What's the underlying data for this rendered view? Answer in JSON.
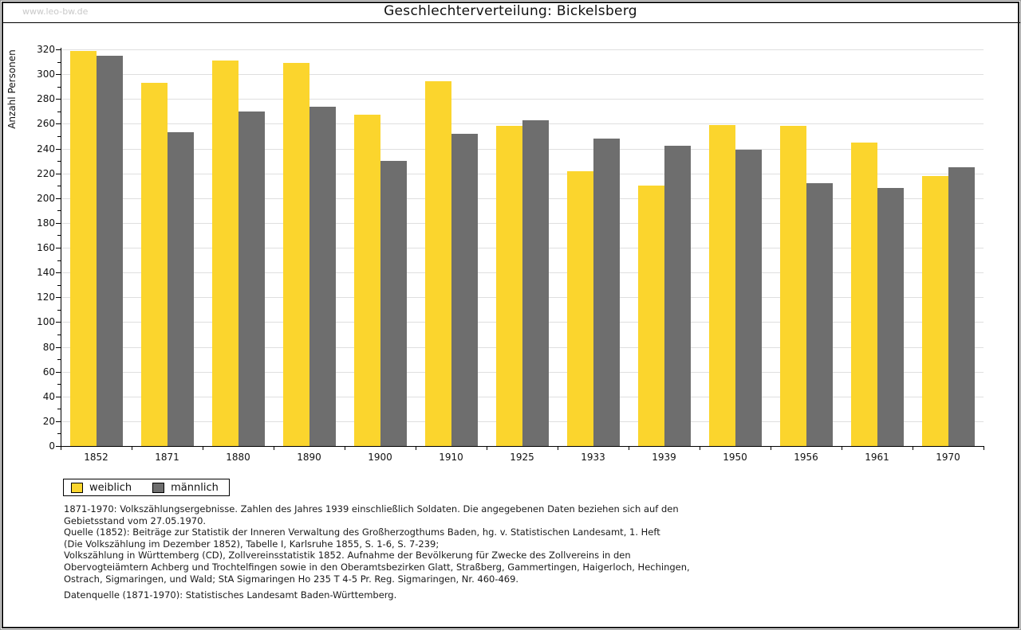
{
  "watermark": "www.leo-bw.de",
  "title": "Geschlechterverteilung: Bickelsberg",
  "chart_data": {
    "type": "bar",
    "title": "Geschlechterverteilung: Bickelsberg",
    "xlabel": "",
    "ylabel": "Anzahl Personen",
    "ylim": [
      0,
      320
    ],
    "yticks": [
      0,
      20,
      40,
      60,
      80,
      100,
      120,
      140,
      160,
      180,
      200,
      220,
      240,
      260,
      280,
      300,
      320
    ],
    "minor_tick_step": 10,
    "grid": "horizontal major gridlines, light gray",
    "legend_position": "bottom-left below plot",
    "categories": [
      "1852",
      "1871",
      "1880",
      "1890",
      "1900",
      "1910",
      "1925",
      "1933",
      "1939",
      "1950",
      "1956",
      "1961",
      "1970"
    ],
    "series": [
      {
        "name": "weiblich",
        "color": "#fbd52d",
        "values": [
          319,
          293,
          311,
          309,
          267,
          294,
          258,
          222,
          210,
          259,
          258,
          245,
          218
        ]
      },
      {
        "name": "männlich",
        "color": "#6e6e6e",
        "values": [
          315,
          253,
          270,
          274,
          230,
          252,
          263,
          248,
          242,
          239,
          212,
          208,
          225
        ]
      }
    ]
  },
  "legend": {
    "items": [
      {
        "label": "weiblich",
        "color": "#fbd52d"
      },
      {
        "label": "männlich",
        "color": "#6e6e6e"
      }
    ]
  },
  "footnotes": {
    "lines": [
      "1871-1970: Volkszählungsergebnisse. Zahlen des Jahres 1939 einschließlich Soldaten. Die angegebenen Daten beziehen sich auf den",
      "Gebietsstand vom 27.05.1970.",
      "Quelle (1852): Beiträge zur Statistik der Inneren Verwaltung des Großherzogthums Baden, hg. v. Statistischen Landesamt, 1. Heft",
      "(Die Volkszählung im Dezember 1852), Tabelle I, Karlsruhe 1855, S. 1-6, S. 7-239;",
      "Volkszählung in Württemberg (CD), Zollvereinsstatistik 1852. Aufnahme der Bevölkerung für Zwecke des Zollvereins in den",
      "Obervogteiämtern Achberg und Trochtelfingen sowie in den Oberamtsbezirken Glatt, Straßberg, Gammertingen, Haigerloch, Hechingen,",
      "Ostrach, Sigmaringen, und Wald; StA Sigmaringen Ho 235 T 4-5 Pr. Reg. Sigmaringen, Nr. 460-469."
    ],
    "source_line": "Datenquelle (1871-1970): Statistisches Landesamt Baden-Württemberg."
  },
  "colors": {
    "female_bar": "#fbd52d",
    "male_bar": "#6e6e6e",
    "gridline": "#dfdfdf",
    "axis": "#000000",
    "watermark": "#c9c9c9",
    "frame": "#1b1b1b",
    "background": "#ffffff"
  }
}
